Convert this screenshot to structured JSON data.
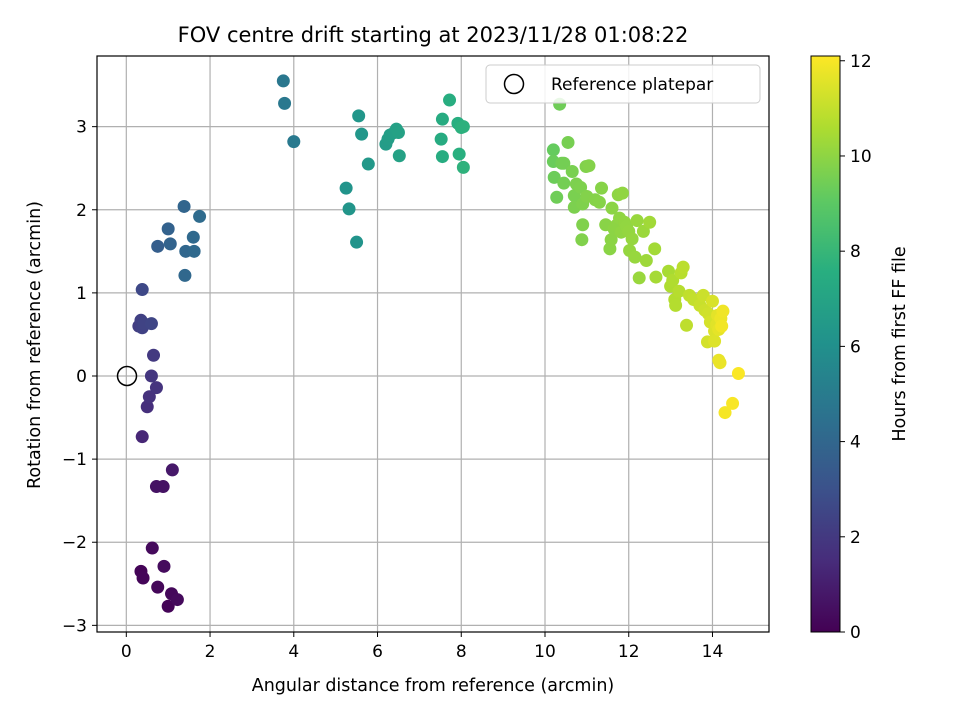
{
  "chart_data": {
    "type": "scatter",
    "title": "FOV centre drift starting at 2023/11/28 01:08:22",
    "xlabel": "Angular distance from reference (arcmin)",
    "ylabel": "Rotation from reference (arcmin)",
    "xlim": [
      -0.7,
      15.35
    ],
    "ylim": [
      -3.08,
      3.85
    ],
    "xticks": [
      0,
      2,
      4,
      6,
      8,
      10,
      12,
      14
    ],
    "yticks": [
      -3,
      -2,
      -1,
      0,
      1,
      2,
      3
    ],
    "xtick_labels": [
      "0",
      "2",
      "4",
      "6",
      "8",
      "10",
      "12",
      "14"
    ],
    "ytick_labels": [
      "−3",
      "−2",
      "−1",
      "0",
      "1",
      "2",
      "3"
    ],
    "grid": true,
    "legend": {
      "placement": "top-right",
      "entries": [
        "Reference platepar"
      ]
    },
    "colormap": "viridis",
    "colorbar": {
      "label": "Hours from first FF file",
      "range": [
        0,
        12.1
      ],
      "ticks": [
        0,
        2,
        4,
        6,
        8,
        10,
        12
      ],
      "tick_labels": [
        "0",
        "2",
        "4",
        "6",
        "8",
        "10",
        "12"
      ]
    },
    "reference_point": {
      "x": 0,
      "y": 0,
      "label": "Reference platepar"
    },
    "points": [
      {
        "x": 0.35,
        "y": -2.35,
        "t": 0.1
      },
      {
        "x": 0.4,
        "y": -2.43,
        "t": 0.15
      },
      {
        "x": 0.62,
        "y": -2.07,
        "t": 0.3
      },
      {
        "x": 0.75,
        "y": -2.54,
        "t": 0.2
      },
      {
        "x": 0.9,
        "y": -2.29,
        "t": 0.35
      },
      {
        "x": 1.0,
        "y": -2.77,
        "t": 0.1
      },
      {
        "x": 1.08,
        "y": -2.62,
        "t": 0.25
      },
      {
        "x": 1.22,
        "y": -2.69,
        "t": 0.3
      },
      {
        "x": 0.72,
        "y": -1.33,
        "t": 0.6
      },
      {
        "x": 0.88,
        "y": -1.33,
        "t": 0.6
      },
      {
        "x": 1.1,
        "y": -1.13,
        "t": 0.8
      },
      {
        "x": 0.38,
        "y": -0.73,
        "t": 1.3
      },
      {
        "x": 0.5,
        "y": -0.37,
        "t": 1.6
      },
      {
        "x": 0.55,
        "y": -0.25,
        "t": 1.7
      },
      {
        "x": 0.72,
        "y": -0.14,
        "t": 1.8
      },
      {
        "x": 0.6,
        "y": 0.0,
        "t": 1.9
      },
      {
        "x": 0.65,
        "y": 0.25,
        "t": 2.0
      },
      {
        "x": 0.3,
        "y": 0.6,
        "t": 2.2
      },
      {
        "x": 0.35,
        "y": 0.67,
        "t": 2.3
      },
      {
        "x": 0.38,
        "y": 0.58,
        "t": 2.35
      },
      {
        "x": 0.42,
        "y": 0.63,
        "t": 2.4
      },
      {
        "x": 0.6,
        "y": 0.63,
        "t": 2.5
      },
      {
        "x": 0.38,
        "y": 1.04,
        "t": 2.6
      },
      {
        "x": 0.75,
        "y": 1.56,
        "t": 3.6
      },
      {
        "x": 1.0,
        "y": 1.77,
        "t": 3.8
      },
      {
        "x": 1.05,
        "y": 1.59,
        "t": 3.85
      },
      {
        "x": 1.38,
        "y": 2.04,
        "t": 3.9
      },
      {
        "x": 1.42,
        "y": 1.5,
        "t": 4.0
      },
      {
        "x": 1.4,
        "y": 1.21,
        "t": 4.05
      },
      {
        "x": 1.6,
        "y": 1.67,
        "t": 4.1
      },
      {
        "x": 1.62,
        "y": 1.5,
        "t": 4.1
      },
      {
        "x": 1.75,
        "y": 1.92,
        "t": 4.2
      },
      {
        "x": 3.75,
        "y": 3.55,
        "t": 4.8
      },
      {
        "x": 3.78,
        "y": 3.28,
        "t": 4.85
      },
      {
        "x": 4.0,
        "y": 2.82,
        "t": 4.9
      },
      {
        "x": 5.25,
        "y": 2.26,
        "t": 6.2
      },
      {
        "x": 5.32,
        "y": 2.01,
        "t": 6.25
      },
      {
        "x": 5.5,
        "y": 1.61,
        "t": 6.2
      },
      {
        "x": 5.55,
        "y": 3.13,
        "t": 6.3
      },
      {
        "x": 5.62,
        "y": 2.91,
        "t": 6.35
      },
      {
        "x": 5.78,
        "y": 2.55,
        "t": 6.4
      },
      {
        "x": 6.2,
        "y": 2.79,
        "t": 6.6
      },
      {
        "x": 6.25,
        "y": 2.85,
        "t": 6.7
      },
      {
        "x": 6.3,
        "y": 2.9,
        "t": 6.75
      },
      {
        "x": 6.4,
        "y": 2.93,
        "t": 6.8
      },
      {
        "x": 6.45,
        "y": 2.97,
        "t": 6.85
      },
      {
        "x": 6.5,
        "y": 2.93,
        "t": 6.9
      },
      {
        "x": 6.52,
        "y": 2.65,
        "t": 6.9
      },
      {
        "x": 7.55,
        "y": 3.09,
        "t": 7.4
      },
      {
        "x": 7.52,
        "y": 2.85,
        "t": 7.4
      },
      {
        "x": 7.55,
        "y": 2.64,
        "t": 7.45
      },
      {
        "x": 7.72,
        "y": 3.32,
        "t": 7.5
      },
      {
        "x": 7.92,
        "y": 3.04,
        "t": 7.55
      },
      {
        "x": 7.95,
        "y": 2.67,
        "t": 7.6
      },
      {
        "x": 8.0,
        "y": 2.99,
        "t": 7.65
      },
      {
        "x": 8.05,
        "y": 3.0,
        "t": 7.7
      },
      {
        "x": 8.05,
        "y": 2.51,
        "t": 7.75
      },
      {
        "x": 10.2,
        "y": 2.72,
        "t": 9.2
      },
      {
        "x": 10.2,
        "y": 2.58,
        "t": 9.3
      },
      {
        "x": 10.22,
        "y": 2.39,
        "t": 9.35
      },
      {
        "x": 10.28,
        "y": 2.15,
        "t": 9.4
      },
      {
        "x": 10.35,
        "y": 3.27,
        "t": 9.4
      },
      {
        "x": 10.4,
        "y": 2.56,
        "t": 9.45
      },
      {
        "x": 10.45,
        "y": 2.56,
        "t": 9.5
      },
      {
        "x": 10.45,
        "y": 2.32,
        "t": 9.5
      },
      {
        "x": 10.55,
        "y": 2.81,
        "t": 9.55
      },
      {
        "x": 10.65,
        "y": 2.46,
        "t": 9.6
      },
      {
        "x": 10.7,
        "y": 2.17,
        "t": 9.62
      },
      {
        "x": 10.7,
        "y": 2.03,
        "t": 9.65
      },
      {
        "x": 10.75,
        "y": 2.31,
        "t": 9.66
      },
      {
        "x": 10.85,
        "y": 2.27,
        "t": 9.68
      },
      {
        "x": 10.9,
        "y": 2.07,
        "t": 9.7
      },
      {
        "x": 10.9,
        "y": 1.82,
        "t": 9.72
      },
      {
        "x": 10.88,
        "y": 1.64,
        "t": 9.74
      },
      {
        "x": 10.98,
        "y": 2.52,
        "t": 9.75
      },
      {
        "x": 11.0,
        "y": 2.16,
        "t": 9.78
      },
      {
        "x": 11.05,
        "y": 2.53,
        "t": 9.8
      },
      {
        "x": 11.2,
        "y": 2.12,
        "t": 9.82
      },
      {
        "x": 11.3,
        "y": 2.09,
        "t": 9.85
      },
      {
        "x": 11.35,
        "y": 2.26,
        "t": 9.86
      },
      {
        "x": 11.45,
        "y": 1.82,
        "t": 9.9
      },
      {
        "x": 11.55,
        "y": 1.53,
        "t": 9.92
      },
      {
        "x": 11.58,
        "y": 1.64,
        "t": 9.94
      },
      {
        "x": 11.6,
        "y": 2.02,
        "t": 9.95
      },
      {
        "x": 11.65,
        "y": 1.77,
        "t": 9.96
      },
      {
        "x": 11.7,
        "y": 1.81,
        "t": 9.98
      },
      {
        "x": 11.75,
        "y": 2.18,
        "t": 10.0
      },
      {
        "x": 11.78,
        "y": 1.9,
        "t": 10.02
      },
      {
        "x": 11.82,
        "y": 1.73,
        "t": 10.04
      },
      {
        "x": 11.85,
        "y": 2.2,
        "t": 10.05
      },
      {
        "x": 11.9,
        "y": 1.85,
        "t": 10.06
      },
      {
        "x": 11.95,
        "y": 1.8,
        "t": 10.08
      },
      {
        "x": 12.0,
        "y": 1.74,
        "t": 10.1
      },
      {
        "x": 12.02,
        "y": 1.51,
        "t": 10.12
      },
      {
        "x": 12.08,
        "y": 1.65,
        "t": 10.14
      },
      {
        "x": 12.15,
        "y": 1.43,
        "t": 10.16
      },
      {
        "x": 12.2,
        "y": 1.87,
        "t": 10.18
      },
      {
        "x": 12.25,
        "y": 1.18,
        "t": 10.2
      },
      {
        "x": 12.35,
        "y": 1.74,
        "t": 10.25
      },
      {
        "x": 12.42,
        "y": 1.39,
        "t": 10.3
      },
      {
        "x": 12.5,
        "y": 1.85,
        "t": 10.35
      },
      {
        "x": 12.62,
        "y": 1.53,
        "t": 10.4
      },
      {
        "x": 12.65,
        "y": 1.19,
        "t": 10.45
      },
      {
        "x": 12.95,
        "y": 1.26,
        "t": 10.5
      },
      {
        "x": 13.0,
        "y": 1.08,
        "t": 10.6
      },
      {
        "x": 13.05,
        "y": 1.15,
        "t": 10.65
      },
      {
        "x": 13.1,
        "y": 0.92,
        "t": 10.7
      },
      {
        "x": 13.12,
        "y": 0.85,
        "t": 10.72
      },
      {
        "x": 13.2,
        "y": 1.02,
        "t": 10.75
      },
      {
        "x": 13.25,
        "y": 1.24,
        "t": 10.8
      },
      {
        "x": 13.3,
        "y": 1.31,
        "t": 10.85
      },
      {
        "x": 13.38,
        "y": 0.61,
        "t": 10.9
      },
      {
        "x": 13.45,
        "y": 0.97,
        "t": 10.95
      },
      {
        "x": 13.55,
        "y": 0.92,
        "t": 11.0
      },
      {
        "x": 13.7,
        "y": 0.85,
        "t": 11.1
      },
      {
        "x": 13.78,
        "y": 0.97,
        "t": 11.15
      },
      {
        "x": 13.82,
        "y": 0.79,
        "t": 11.2
      },
      {
        "x": 13.9,
        "y": 0.75,
        "t": 11.25
      },
      {
        "x": 13.88,
        "y": 0.41,
        "t": 11.3
      },
      {
        "x": 13.95,
        "y": 0.65,
        "t": 11.35
      },
      {
        "x": 14.0,
        "y": 0.9,
        "t": 11.4
      },
      {
        "x": 14.05,
        "y": 0.54,
        "t": 11.45
      },
      {
        "x": 14.05,
        "y": 0.42,
        "t": 11.5
      },
      {
        "x": 14.1,
        "y": 0.62,
        "t": 11.55
      },
      {
        "x": 14.12,
        "y": 0.73,
        "t": 11.6
      },
      {
        "x": 14.15,
        "y": 0.56,
        "t": 11.65
      },
      {
        "x": 14.15,
        "y": 0.19,
        "t": 11.7
      },
      {
        "x": 14.18,
        "y": 0.16,
        "t": 11.75
      },
      {
        "x": 14.2,
        "y": 0.69,
        "t": 11.8
      },
      {
        "x": 14.25,
        "y": 0.78,
        "t": 11.85
      },
      {
        "x": 14.22,
        "y": 0.6,
        "t": 11.9
      },
      {
        "x": 14.3,
        "y": -0.44,
        "t": 11.95
      },
      {
        "x": 14.48,
        "y": -0.33,
        "t": 12.0
      },
      {
        "x": 14.62,
        "y": 0.03,
        "t": 12.05
      }
    ]
  }
}
